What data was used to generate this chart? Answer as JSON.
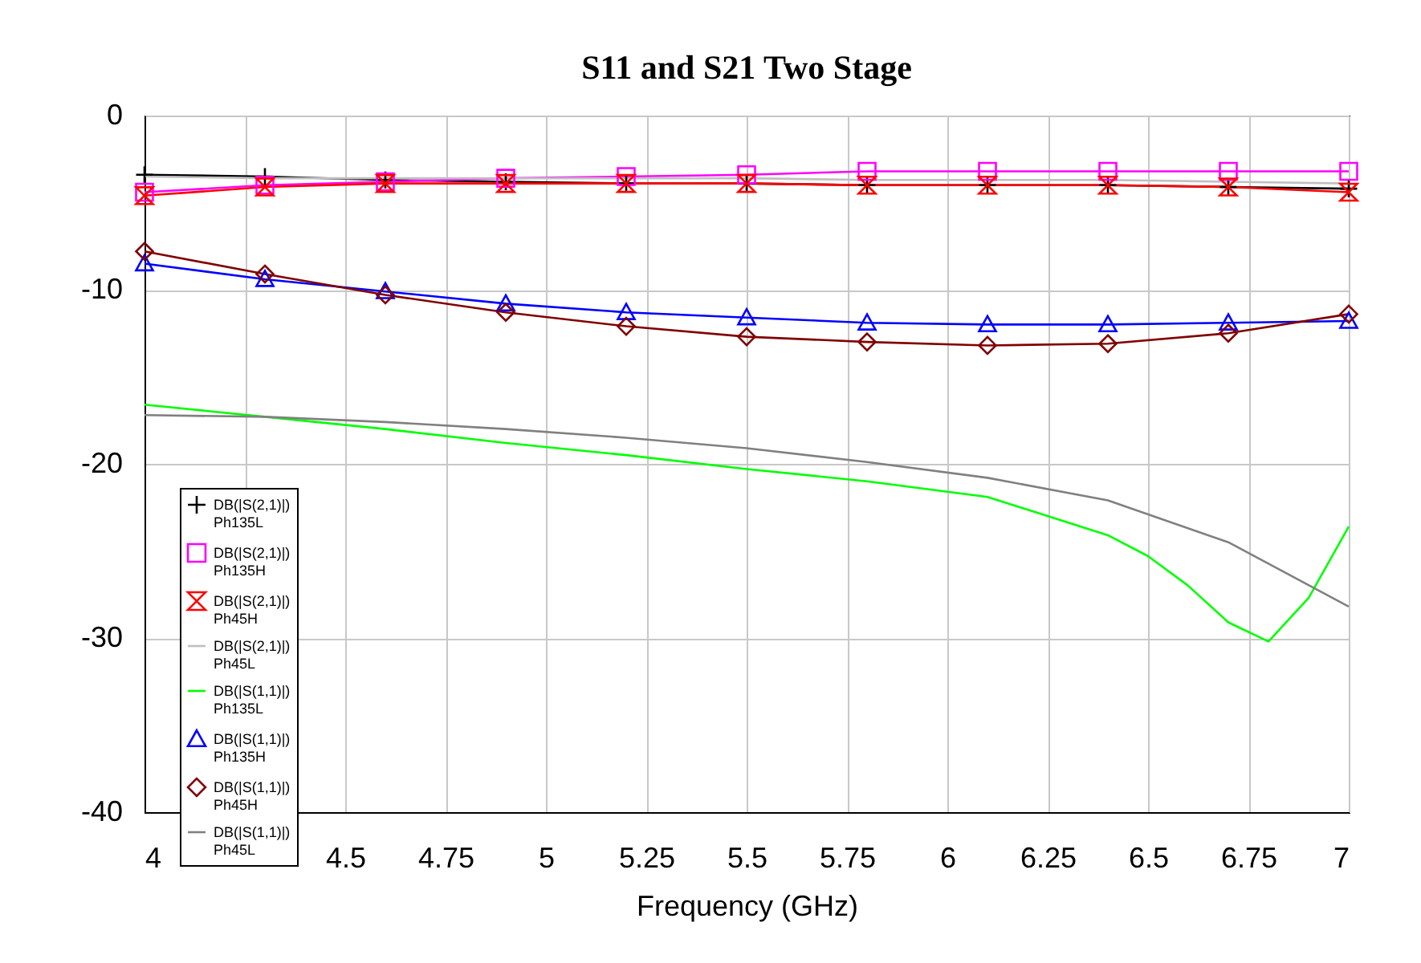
{
  "chart_data": {
    "type": "line",
    "title": "S11 and S21 Two Stage",
    "xlabel": "Frequency (GHz)",
    "xlim": [
      4,
      7
    ],
    "xticks": [
      4,
      {
        "value": 4.25,
        "label": null
      },
      4.5,
      4.75,
      5,
      5.25,
      5.5,
      5.75,
      6,
      6.25,
      6.5,
      6.75,
      7
    ],
    "ylim": [
      -40,
      0
    ],
    "yticks": [
      -40,
      -30,
      -20,
      -10,
      0
    ],
    "grid": true,
    "legend": "bottom left",
    "x": [
      4,
      4.3,
      4.6,
      4.9,
      5.2,
      5.5,
      5.8,
      6.1,
      6.4,
      6.7,
      7
    ],
    "series": [
      {
        "name": "DB(|S(2,1)|)\nPh135L",
        "color": "#000000",
        "marker": "cross",
        "values": [
          -3.4,
          -3.5,
          -3.7,
          -3.8,
          -3.9,
          -3.9,
          -4.0,
          -4.0,
          -4.0,
          -4.1,
          -4.2
        ]
      },
      {
        "name": "DB(|S(2,1)|)\nPh135H",
        "color": "#ff00ff",
        "marker": "square",
        "values": [
          -4.4,
          -4.0,
          -3.8,
          -3.6,
          -3.5,
          -3.4,
          -3.2,
          -3.2,
          -3.2,
          -3.2,
          -3.2
        ]
      },
      {
        "name": "DB(|S(2,1)|)\nPh45H",
        "color": "#ff0000",
        "marker": "star",
        "values": [
          -4.6,
          -4.1,
          -3.9,
          -3.9,
          -3.9,
          -3.9,
          -4.0,
          -4.0,
          -4.0,
          -4.1,
          -4.4
        ]
      },
      {
        "name": "DB(|S(2,1)|)\nPh45L",
        "color": "#c0c0c0",
        "marker": "none",
        "values": [
          -3.5,
          -3.6,
          -3.6,
          -3.6,
          -3.6,
          -3.6,
          -3.7,
          -3.7,
          -3.7,
          -3.8,
          -3.9
        ]
      },
      {
        "name": "DB(|S(1,1)|)\nPh135L",
        "color": "#00ff00",
        "marker": "none",
        "x": [
          4,
          4.3,
          4.6,
          4.9,
          5.2,
          5.5,
          5.8,
          6.1,
          6.4,
          6.5,
          6.6,
          6.7,
          6.8,
          6.9,
          7
        ],
        "values": [
          -16.6,
          -17.3,
          -18.0,
          -18.8,
          -19.5,
          -20.3,
          -21.0,
          -21.9,
          -24.1,
          -25.3,
          -27.0,
          -29.1,
          -30.2,
          -27.7,
          -23.6
        ]
      },
      {
        "name": "DB(|S(1,1)|)\nPh135H",
        "color": "#0000ff",
        "marker": "triangle",
        "values": [
          -8.5,
          -9.4,
          -10.1,
          -10.8,
          -11.3,
          -11.6,
          -11.9,
          -12.0,
          -12.0,
          -11.9,
          -11.8
        ]
      },
      {
        "name": "DB(|S(1,1)|)\nPh45H",
        "color": "#800000",
        "marker": "diamond",
        "values": [
          -7.8,
          -9.1,
          -10.3,
          -11.3,
          -12.1,
          -12.7,
          -13.0,
          -13.2,
          -13.1,
          -12.5,
          -11.4
        ]
      },
      {
        "name": "DB(|S(1,1)|)\nPh45L",
        "color": "#808080",
        "marker": "none",
        "values": [
          -17.2,
          -17.3,
          -17.6,
          -18.0,
          -18.5,
          -19.1,
          -19.9,
          -20.8,
          -22.1,
          -24.5,
          -28.2
        ]
      }
    ]
  }
}
